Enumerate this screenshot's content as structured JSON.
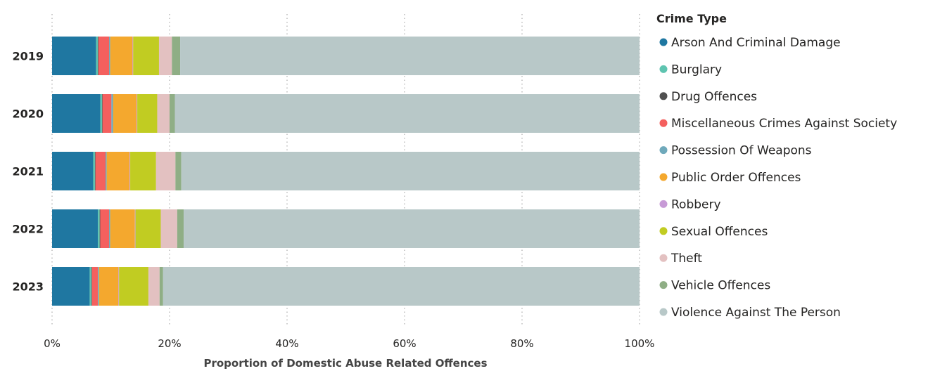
{
  "chart_data": {
    "type": "bar",
    "orientation": "horizontal",
    "stacked": "100%",
    "categories": [
      "2019",
      "2020",
      "2021",
      "2022",
      "2023"
    ],
    "xlabel": "Proportion of Domestic Abuse Related Offences",
    "ylabel": "",
    "xlim": [
      0,
      100
    ],
    "x_ticks": [
      "0%",
      "20%",
      "40%",
      "60%",
      "80%",
      "100%"
    ],
    "grid": "vertical dotted",
    "legend": {
      "title": "Crime Type",
      "placement": "right"
    },
    "series": [
      {
        "name": "Arson And Criminal Damage",
        "color": "#1f77a1",
        "values": [
          7.5,
          8.2,
          7.0,
          7.8,
          6.4
        ]
      },
      {
        "name": "Burglary",
        "color": "#5ec4b0",
        "values": [
          0.3,
          0.3,
          0.3,
          0.3,
          0.3
        ]
      },
      {
        "name": "Drug Offences",
        "color": "#505050",
        "values": [
          0.1,
          0.1,
          0.1,
          0.1,
          0.1
        ]
      },
      {
        "name": "Miscellaneous Crimes Against Society",
        "color": "#f4605e",
        "values": [
          1.8,
          1.5,
          1.7,
          1.5,
          1.0
        ]
      },
      {
        "name": "Possession Of Weapons",
        "color": "#6fa9bb",
        "values": [
          0.2,
          0.3,
          0.2,
          0.2,
          0.2
        ]
      },
      {
        "name": "Public Order Offences",
        "color": "#f4a82e",
        "values": [
          3.8,
          4.0,
          3.9,
          4.2,
          3.3
        ]
      },
      {
        "name": "Robbery",
        "color": "#c79ad6",
        "values": [
          0.1,
          0.1,
          0.1,
          0.1,
          0.1
        ]
      },
      {
        "name": "Sexual Offences",
        "color": "#c1cc22",
        "values": [
          4.4,
          3.4,
          4.4,
          4.3,
          5.0
        ]
      },
      {
        "name": "Theft",
        "color": "#e3c1c1",
        "values": [
          2.2,
          2.1,
          3.3,
          2.8,
          1.9
        ]
      },
      {
        "name": "Vehicle Offences",
        "color": "#8fae85",
        "values": [
          1.4,
          0.9,
          1.0,
          1.1,
          0.6
        ]
      },
      {
        "name": "Violence Against The Person",
        "color": "#b8c8c8",
        "values": [
          78.2,
          79.1,
          78.0,
          77.6,
          81.1
        ]
      }
    ]
  }
}
